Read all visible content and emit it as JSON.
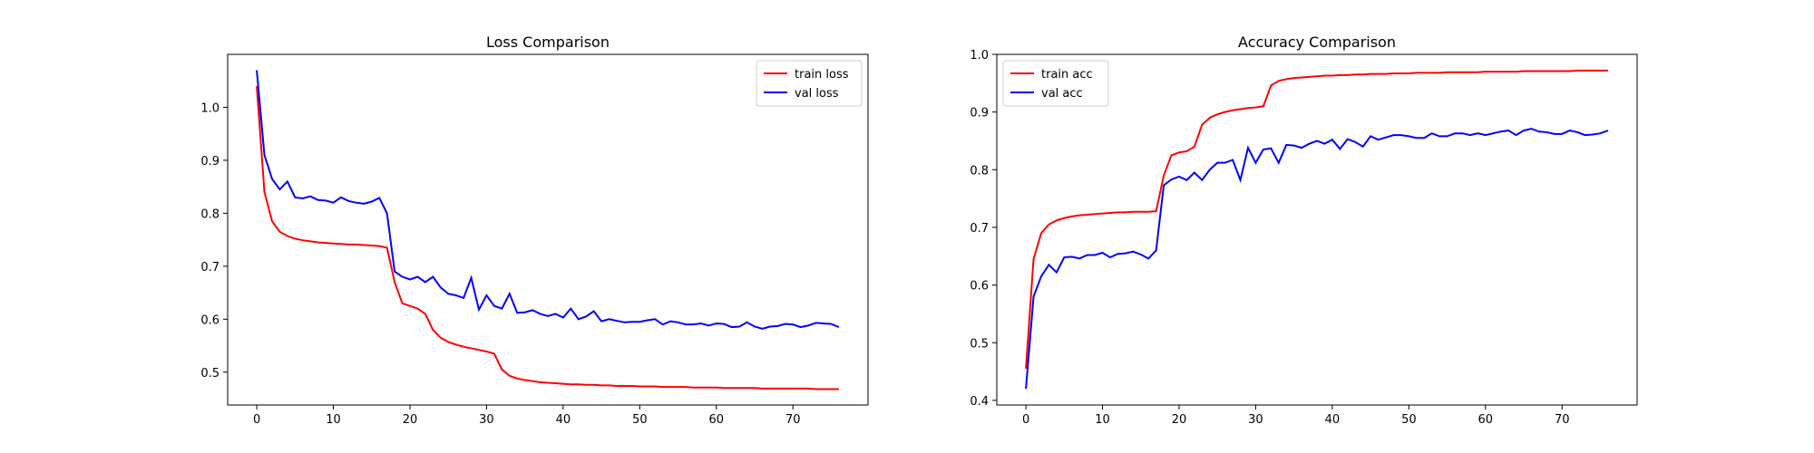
{
  "chart_data": [
    {
      "type": "line",
      "title": "Loss Comparison",
      "x": [
        0,
        1,
        2,
        3,
        4,
        5,
        6,
        7,
        8,
        9,
        10,
        11,
        12,
        13,
        14,
        15,
        16,
        17,
        18,
        19,
        20,
        21,
        22,
        23,
        24,
        25,
        26,
        27,
        28,
        29,
        30,
        31,
        32,
        33,
        34,
        35,
        36,
        37,
        38,
        39,
        40,
        41,
        42,
        43,
        44,
        45,
        46,
        47,
        48,
        49,
        50,
        51,
        52,
        53,
        54,
        55,
        56,
        57,
        58,
        59,
        60,
        61,
        62,
        63,
        64,
        65,
        66,
        67,
        68,
        69,
        70,
        71,
        72,
        73,
        74,
        75,
        76
      ],
      "series": [
        {
          "name": "train loss",
          "color": "#ff0000",
          "values": [
            1.04,
            0.84,
            0.785,
            0.765,
            0.757,
            0.752,
            0.749,
            0.747,
            0.745,
            0.744,
            0.743,
            0.742,
            0.741,
            0.741,
            0.74,
            0.739,
            0.738,
            0.735,
            0.67,
            0.63,
            0.625,
            0.62,
            0.61,
            0.58,
            0.565,
            0.557,
            0.552,
            0.548,
            0.545,
            0.542,
            0.539,
            0.535,
            0.505,
            0.493,
            0.488,
            0.485,
            0.483,
            0.481,
            0.48,
            0.479,
            0.478,
            0.477,
            0.477,
            0.476,
            0.476,
            0.475,
            0.475,
            0.474,
            0.474,
            0.474,
            0.473,
            0.473,
            0.473,
            0.472,
            0.472,
            0.472,
            0.472,
            0.471,
            0.471,
            0.471,
            0.471,
            0.47,
            0.47,
            0.47,
            0.47,
            0.47,
            0.469,
            0.469,
            0.469,
            0.469,
            0.469,
            0.469,
            0.469,
            0.468,
            0.468,
            0.468,
            0.468
          ]
        },
        {
          "name": "val loss",
          "color": "#0000ff",
          "values": [
            1.07,
            0.91,
            0.865,
            0.845,
            0.86,
            0.83,
            0.828,
            0.832,
            0.825,
            0.824,
            0.82,
            0.83,
            0.823,
            0.82,
            0.818,
            0.822,
            0.829,
            0.8,
            0.69,
            0.68,
            0.675,
            0.68,
            0.67,
            0.68,
            0.66,
            0.648,
            0.645,
            0.64,
            0.678,
            0.618,
            0.645,
            0.625,
            0.62,
            0.648,
            0.612,
            0.613,
            0.617,
            0.61,
            0.606,
            0.61,
            0.603,
            0.62,
            0.6,
            0.605,
            0.615,
            0.596,
            0.6,
            0.597,
            0.594,
            0.595,
            0.595,
            0.598,
            0.6,
            0.59,
            0.596,
            0.594,
            0.59,
            0.59,
            0.592,
            0.588,
            0.592,
            0.591,
            0.585,
            0.586,
            0.594,
            0.586,
            0.582,
            0.586,
            0.587,
            0.591,
            0.59,
            0.585,
            0.588,
            0.593,
            0.592,
            0.591,
            0.585
          ]
        }
      ],
      "xlim": [
        -3.8,
        79.8
      ],
      "xticks": [
        0,
        10,
        20,
        30,
        40,
        50,
        60,
        70
      ],
      "ylim": [
        0.438,
        1.1
      ],
      "yticks": [
        0.5,
        0.6,
        0.7,
        0.8,
        0.9,
        {
          "value": 1,
          "label": "1.0"
        }
      ],
      "legend": "upper right"
    },
    {
      "type": "line",
      "title": "Accuracy Comparison",
      "x": [
        0,
        1,
        2,
        3,
        4,
        5,
        6,
        7,
        8,
        9,
        10,
        11,
        12,
        13,
        14,
        15,
        16,
        17,
        18,
        19,
        20,
        21,
        22,
        23,
        24,
        25,
        26,
        27,
        28,
        29,
        30,
        31,
        32,
        33,
        34,
        35,
        36,
        37,
        38,
        39,
        40,
        41,
        42,
        43,
        44,
        45,
        46,
        47,
        48,
        49,
        50,
        51,
        52,
        53,
        54,
        55,
        56,
        57,
        58,
        59,
        60,
        61,
        62,
        63,
        64,
        65,
        66,
        67,
        68,
        69,
        70,
        71,
        72,
        73,
        74,
        75,
        76
      ],
      "series": [
        {
          "name": "train acc",
          "color": "#ff0000",
          "values": [
            0.455,
            0.645,
            0.69,
            0.705,
            0.712,
            0.716,
            0.719,
            0.721,
            0.722,
            0.723,
            0.724,
            0.725,
            0.726,
            0.726,
            0.727,
            0.727,
            0.727,
            0.728,
            0.79,
            0.825,
            0.83,
            0.832,
            0.84,
            0.878,
            0.89,
            0.896,
            0.9,
            0.903,
            0.905,
            0.907,
            0.908,
            0.91,
            0.946,
            0.954,
            0.957,
            0.959,
            0.96,
            0.961,
            0.962,
            0.963,
            0.963,
            0.964,
            0.964,
            0.965,
            0.965,
            0.966,
            0.966,
            0.966,
            0.967,
            0.967,
            0.967,
            0.968,
            0.968,
            0.968,
            0.968,
            0.969,
            0.969,
            0.969,
            0.969,
            0.969,
            0.97,
            0.97,
            0.97,
            0.97,
            0.97,
            0.971,
            0.971,
            0.971,
            0.971,
            0.971,
            0.971,
            0.971,
            0.972,
            0.972,
            0.972,
            0.972,
            0.972
          ]
        },
        {
          "name": "val acc",
          "color": "#0000ff",
          "values": [
            0.42,
            0.58,
            0.615,
            0.635,
            0.622,
            0.648,
            0.649,
            0.646,
            0.652,
            0.652,
            0.656,
            0.648,
            0.654,
            0.655,
            0.658,
            0.653,
            0.646,
            0.66,
            0.773,
            0.783,
            0.788,
            0.782,
            0.795,
            0.782,
            0.8,
            0.812,
            0.812,
            0.817,
            0.782,
            0.838,
            0.812,
            0.835,
            0.837,
            0.812,
            0.843,
            0.842,
            0.838,
            0.845,
            0.85,
            0.845,
            0.852,
            0.836,
            0.853,
            0.848,
            0.84,
            0.858,
            0.852,
            0.856,
            0.86,
            0.86,
            0.858,
            0.855,
            0.855,
            0.863,
            0.858,
            0.858,
            0.863,
            0.863,
            0.86,
            0.863,
            0.86,
            0.863,
            0.866,
            0.868,
            0.86,
            0.868,
            0.871,
            0.866,
            0.865,
            0.862,
            0.862,
            0.868,
            0.865,
            0.86,
            0.861,
            0.863,
            0.868
          ]
        }
      ],
      "xlim": [
        -3.8,
        79.8
      ],
      "xticks": [
        0,
        10,
        20,
        30,
        40,
        50,
        60,
        70
      ],
      "ylim": [
        0.392,
        1.0
      ],
      "yticks": [
        0.4,
        0.5,
        0.6,
        0.7,
        0.8,
        0.9,
        {
          "value": 1,
          "label": "1.0"
        }
      ],
      "legend": "upper left"
    }
  ]
}
